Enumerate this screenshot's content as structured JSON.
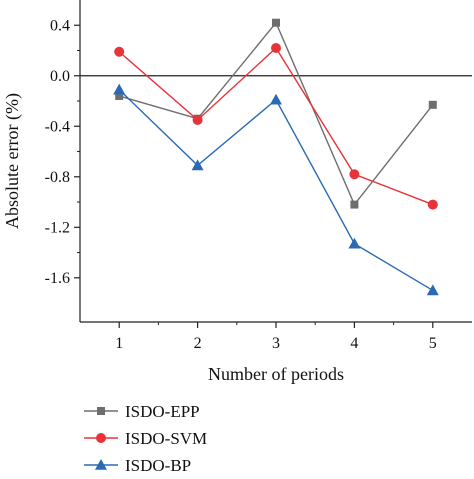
{
  "chart_data": {
    "type": "line",
    "xlabel": "Number of periods",
    "ylabel": "Absolute error (%)",
    "x": [
      1,
      2,
      3,
      4,
      5
    ],
    "x_ticks": [
      "1",
      "2",
      "3",
      "4",
      "5"
    ],
    "xlim": [
      0.5,
      5.5
    ],
    "ylim": [
      -1.95,
      0.6
    ],
    "y_ticks": [
      "0.4",
      "0.0",
      "-0.4",
      "-0.8",
      "-1.2",
      "-1.6"
    ],
    "y_tick_values": [
      0.4,
      0.0,
      -0.4,
      -0.8,
      -1.2,
      -1.6
    ],
    "reference_line_y": 0,
    "grid": false,
    "legend_position": "bottom",
    "series": [
      {
        "name": "ISDO-EPP",
        "marker": "square",
        "color": "#6e6e6e",
        "values": [
          -0.16,
          -0.34,
          0.42,
          -1.02,
          -0.23
        ]
      },
      {
        "name": "ISDO-SVM",
        "marker": "circle",
        "color": "#e8333a",
        "values": [
          0.19,
          -0.35,
          0.22,
          -0.78,
          -1.02
        ]
      },
      {
        "name": "ISDO-BP",
        "marker": "triangle",
        "color": "#2a6ab4",
        "values": [
          -0.11,
          -0.71,
          -0.19,
          -1.33,
          -1.7
        ]
      }
    ]
  }
}
